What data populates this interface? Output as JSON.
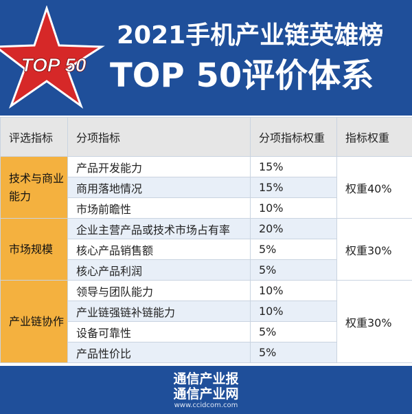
{
  "header": {
    "logo_text": "TOP 50",
    "title_line1": "2021手机产业链英雄榜",
    "title_line2": "TOP 50评价体系",
    "colors": {
      "background": "#1f4f9a",
      "star": "#d62828"
    }
  },
  "table": {
    "headers": [
      "评选指标",
      "分项指标",
      "分项指标权重",
      "指标权重"
    ],
    "groups": [
      {
        "name": "技术与商业能力",
        "weight": "权重40%",
        "items": [
          {
            "name": "产品开发能力",
            "weight": "15%"
          },
          {
            "name": "商用落地情况",
            "weight": "15%"
          },
          {
            "name": "市场前瞻性",
            "weight": "10%"
          }
        ]
      },
      {
        "name": "市场规模",
        "weight": "权重30%",
        "items": [
          {
            "name": "企业主营产品或技术市场占有率",
            "weight": "20%"
          },
          {
            "name": "核心产品销售额",
            "weight": "5%"
          },
          {
            "name": "核心产品利润",
            "weight": "5%"
          }
        ]
      },
      {
        "name": "产业链协作",
        "weight": "权重30%",
        "items": [
          {
            "name": "领导与团队能力",
            "weight": "10%"
          },
          {
            "name": "产业链强链补链能力",
            "weight": "10%"
          },
          {
            "name": "设备可靠性",
            "weight": "5%"
          },
          {
            "name": "产品性价比",
            "weight": "5%"
          }
        ]
      }
    ],
    "colors": {
      "category_cell": "#f4b13f",
      "header_row": "#e6e6e6",
      "alt_row": "#e8eff8",
      "border": "#c9d3e0"
    }
  },
  "footer": {
    "line1": "通信产业报",
    "line2": "通信产业网",
    "url": "www.ccidcom.com"
  }
}
